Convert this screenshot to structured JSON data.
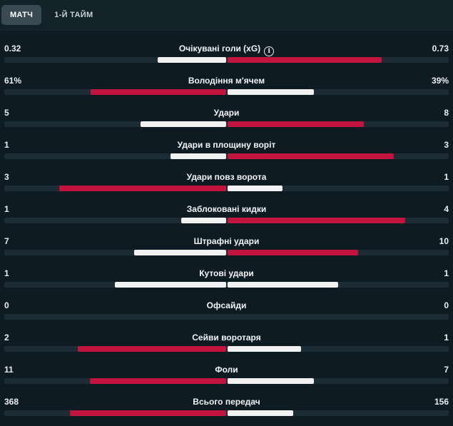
{
  "tabs": [
    {
      "label": "МАТЧ",
      "active": true
    },
    {
      "label": "1-Й ТАЙМ",
      "active": false
    }
  ],
  "colors": {
    "home": "#f1f1f1",
    "away": "#c3143f",
    "background": "#0f1b22"
  },
  "stats": [
    {
      "label": "Очікувані голи (xG)",
      "info": true,
      "home": "0.32",
      "away": "0.73",
      "home_pct": 30.6,
      "away_pct": 69.4,
      "home_color": "white",
      "away_color": "red"
    },
    {
      "label": "Володіння м'ячем",
      "home": "61%",
      "away": "39%",
      "home_pct": 61,
      "away_pct": 39,
      "home_color": "red",
      "away_color": "white"
    },
    {
      "label": "Удари",
      "home": "5",
      "away": "8",
      "home_pct": 38.5,
      "away_pct": 61.5,
      "home_color": "white",
      "away_color": "red"
    },
    {
      "label": "Удари в площину воріт",
      "home": "1",
      "away": "3",
      "home_pct": 25,
      "away_pct": 75,
      "home_color": "white",
      "away_color": "red"
    },
    {
      "label": "Удари повз ворота",
      "home": "3",
      "away": "1",
      "home_pct": 75,
      "away_pct": 25,
      "home_color": "red",
      "away_color": "white"
    },
    {
      "label": "Заблоковані кидки",
      "home": "1",
      "away": "4",
      "home_pct": 20,
      "away_pct": 80,
      "home_color": "white",
      "away_color": "red"
    },
    {
      "label": "Штрафні удари",
      "home": "7",
      "away": "10",
      "home_pct": 41.2,
      "away_pct": 58.8,
      "home_color": "white",
      "away_color": "red"
    },
    {
      "label": "Кутові удари",
      "home": "1",
      "away": "1",
      "home_pct": 50,
      "away_pct": 50,
      "home_color": "white",
      "away_color": "white"
    },
    {
      "label": "Офсайди",
      "home": "0",
      "away": "0",
      "home_pct": 0,
      "away_pct": 0,
      "home_color": "white",
      "away_color": "white"
    },
    {
      "label": "Сейви воротаря",
      "home": "2",
      "away": "1",
      "home_pct": 66.7,
      "away_pct": 33.3,
      "home_color": "red",
      "away_color": "white"
    },
    {
      "label": "Фоли",
      "home": "11",
      "away": "7",
      "home_pct": 61.1,
      "away_pct": 38.9,
      "home_color": "red",
      "away_color": "white"
    },
    {
      "label": "Всього передач",
      "home": "368",
      "away": "156",
      "home_pct": 70.2,
      "away_pct": 29.8,
      "home_color": "red",
      "away_color": "white"
    }
  ]
}
